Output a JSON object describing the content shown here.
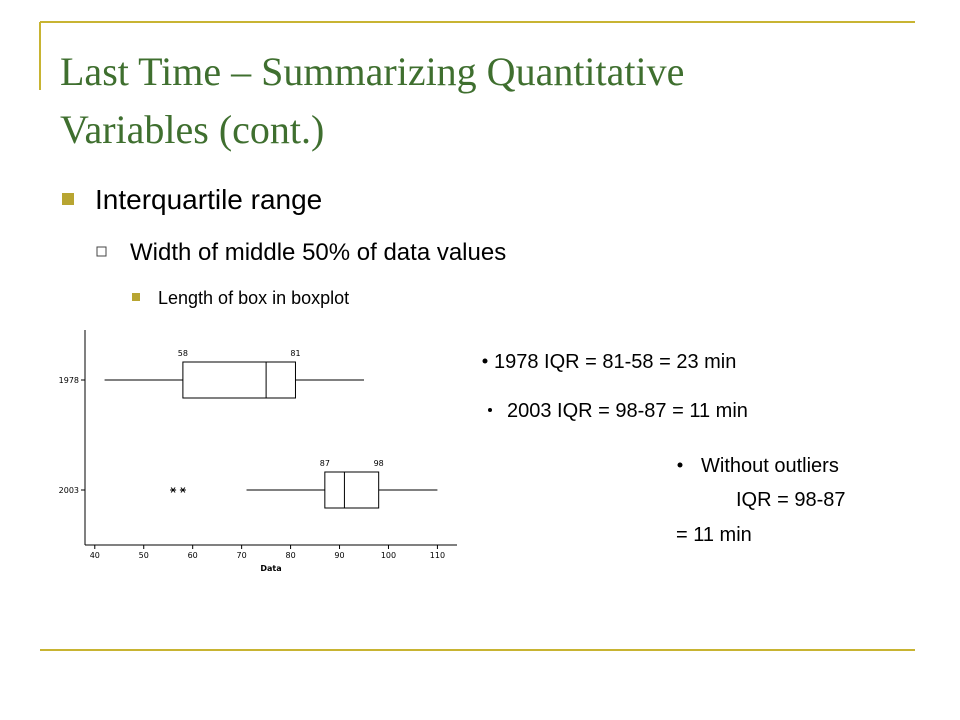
{
  "title": "Last Time – Summarizing Quantitative Variables (cont.)",
  "bullets": [
    "Interquartile range",
    "Width of middle 50% of data values",
    "Length of box in boxplot"
  ],
  "notes": [
    "1978 IQR = 81-58 = 23 min",
    "2003 IQR = 98-87 = 11 min",
    "Without outliers",
    "IQR = 98-87",
    "= 11 min"
  ],
  "chart_data": {
    "type": "boxplot",
    "xlabel": "Data",
    "xlim": [
      38,
      114
    ],
    "xticks": [
      40,
      50,
      60,
      70,
      80,
      90,
      100,
      110
    ],
    "boxes": [
      {
        "name": "1978",
        "min": 42,
        "q1": 58,
        "median": 75,
        "q3": 81,
        "max": 95,
        "outliers": []
      },
      {
        "name": "2003",
        "min": 71,
        "q1": 87,
        "median": 91,
        "q3": 98,
        "max": 110,
        "outliers": [
          56,
          58
        ]
      }
    ]
  }
}
